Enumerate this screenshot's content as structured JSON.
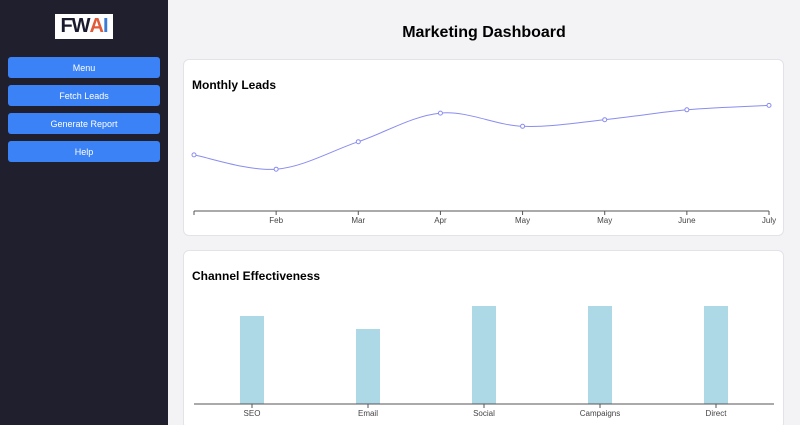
{
  "sidebar": {
    "logo": {
      "part1": "FW",
      "part2": "A",
      "part3": "I"
    },
    "items": [
      {
        "label": "Menu"
      },
      {
        "label": "Fetch Leads"
      },
      {
        "label": "Generate Report"
      },
      {
        "label": "Help"
      }
    ]
  },
  "header": {
    "title": "Marketing Dashboard"
  },
  "cards": {
    "leads": {
      "title": "Monthly Leads"
    },
    "channels": {
      "title": "Channel Effectiveness"
    }
  },
  "chart_data": [
    {
      "type": "line",
      "categories": [
        "",
        "Feb",
        "Mar",
        "Apr",
        "May",
        "May",
        "June",
        "July"
      ],
      "values": [
        51,
        38,
        63,
        89,
        77,
        83,
        92,
        96
      ],
      "ylim": [
        0,
        100
      ],
      "color": "#8a8cf0"
    },
    {
      "type": "bar",
      "categories": [
        "SEO",
        "Email",
        "Social",
        "Campaigns",
        "Direct"
      ],
      "values": [
        88,
        75,
        98,
        98,
        98
      ],
      "ylim": [
        0,
        100
      ],
      "color": "#add8e6"
    }
  ]
}
